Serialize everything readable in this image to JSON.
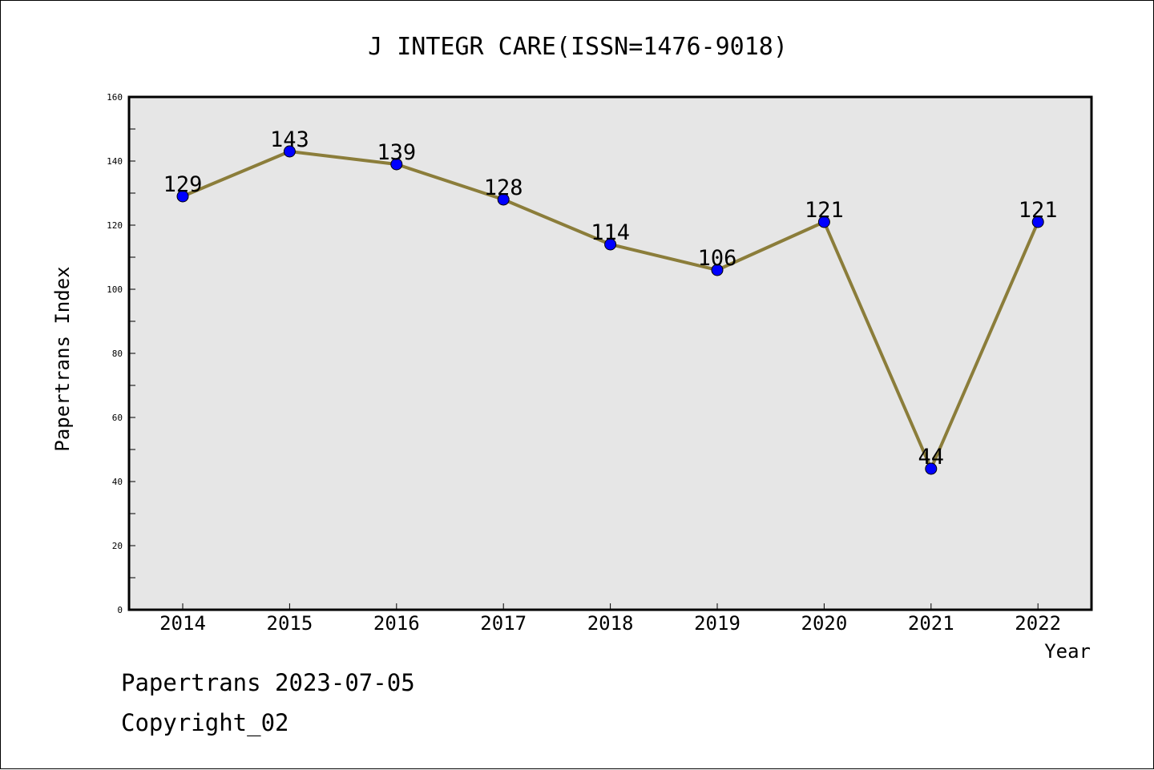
{
  "chart_data": {
    "type": "line",
    "title": "J INTEGR CARE(ISSN=1476-9018)",
    "xlabel": "Year",
    "ylabel": "Papertrans Index",
    "categories": [
      "2014",
      "2015",
      "2016",
      "2017",
      "2018",
      "2019",
      "2020",
      "2021",
      "2022"
    ],
    "series": [
      {
        "values": [
          129,
          143,
          139,
          128,
          114,
          106,
          121,
          44,
          121
        ]
      }
    ],
    "ylim": [
      0,
      160
    ],
    "yticks": [
      0,
      20,
      40,
      60,
      80,
      100,
      120,
      140,
      160
    ],
    "grid": false,
    "colors": {
      "line": "#8b7d3a",
      "marker": "#0000ff",
      "plot_bg": "#e6e6e6"
    }
  },
  "footer": {
    "date_line": "Papertrans 2023-07-05",
    "copyright": "Copyright_02"
  }
}
